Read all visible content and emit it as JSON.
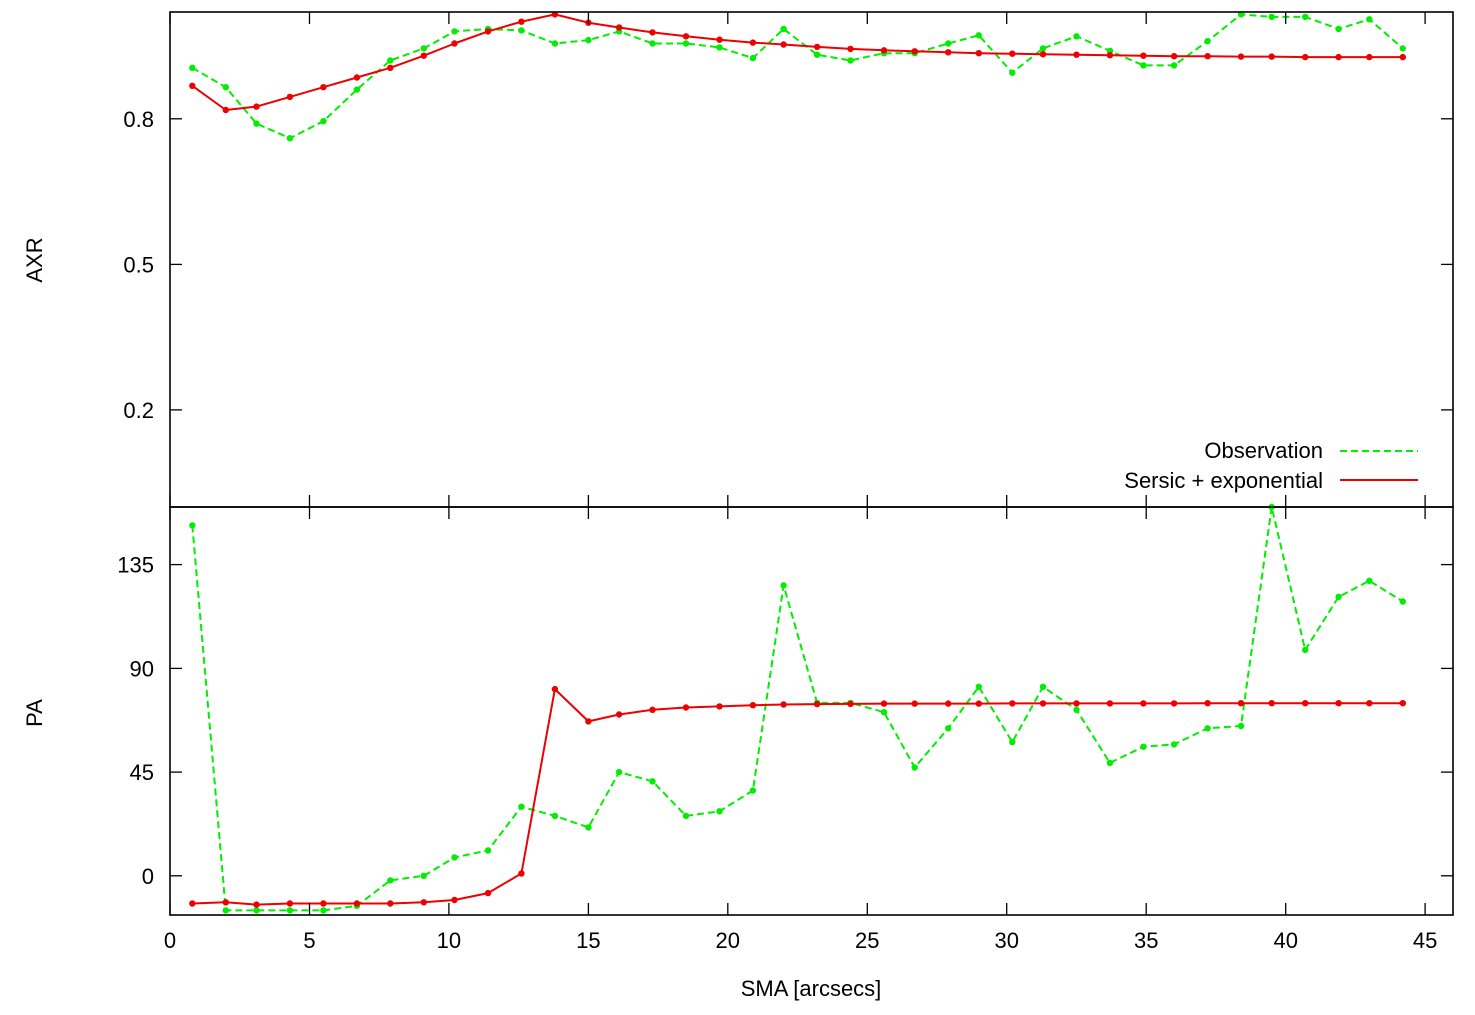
{
  "chart_data": [
    {
      "type": "line",
      "panel": "top",
      "ylabel": "AXR",
      "xlabel": "",
      "xlim": [
        0,
        46
      ],
      "ylim": [
        0.0,
        1.02
      ],
      "yticks": [
        {
          "value": 0.2,
          "label": "0.2"
        },
        {
          "value": 0.5,
          "label": "0.5"
        },
        {
          "value": 0.8,
          "label": "0.8"
        }
      ],
      "grid": false,
      "legend_position": "bottom-right",
      "series": [
        {
          "name": "Observation",
          "color": "#00ee00",
          "dash": true,
          "x": [
            0.8,
            2.0,
            3.1,
            4.3,
            5.5,
            6.7,
            7.9,
            9.1,
            10.2,
            11.4,
            12.6,
            13.8,
            15.0,
            16.1,
            17.3,
            18.5,
            19.7,
            20.9,
            22.0,
            23.2,
            24.4,
            25.6,
            26.7,
            27.9,
            29.0,
            30.2,
            31.3,
            32.5,
            33.7,
            34.9,
            36.0,
            37.2,
            38.4,
            39.5,
            40.7,
            41.9,
            43.0,
            44.2
          ],
          "y": [
            0.905,
            0.865,
            0.79,
            0.76,
            0.795,
            0.86,
            0.92,
            0.945,
            0.98,
            0.985,
            0.982,
            0.955,
            0.962,
            0.98,
            0.955,
            0.955,
            0.947,
            0.925,
            0.985,
            0.932,
            0.92,
            0.935,
            0.935,
            0.955,
            0.972,
            0.895,
            0.945,
            0.97,
            0.94,
            0.91,
            0.91,
            0.96,
            1.015,
            1.01,
            1.01,
            0.985,
            1.005,
            0.945
          ]
        },
        {
          "name": "Sersic + exponential",
          "color": "#ee0000",
          "dash": false,
          "x": [
            0.8,
            2.0,
            3.1,
            4.3,
            5.5,
            6.7,
            7.9,
            9.1,
            10.2,
            11.4,
            12.6,
            13.8,
            15.0,
            16.1,
            17.3,
            18.5,
            19.7,
            20.9,
            22.0,
            23.2,
            24.4,
            25.6,
            26.7,
            27.9,
            29.0,
            30.2,
            31.3,
            32.5,
            33.7,
            34.9,
            36.0,
            37.2,
            38.4,
            39.5,
            40.7,
            41.9,
            43.0,
            44.2
          ],
          "y": [
            0.868,
            0.818,
            0.825,
            0.845,
            0.865,
            0.885,
            0.905,
            0.93,
            0.955,
            0.98,
            1.0,
            1.015,
            0.998,
            0.988,
            0.978,
            0.97,
            0.963,
            0.957,
            0.953,
            0.948,
            0.944,
            0.941,
            0.939,
            0.937,
            0.935,
            0.934,
            0.933,
            0.932,
            0.931,
            0.93,
            0.929,
            0.929,
            0.928,
            0.928,
            0.927,
            0.927,
            0.927,
            0.927
          ]
        }
      ]
    },
    {
      "type": "line",
      "panel": "bottom",
      "ylabel": "PA",
      "xlabel": "SMA [arcsecs]",
      "xlim": [
        0,
        46
      ],
      "ylim": [
        -17,
        160
      ],
      "xticks": [
        {
          "value": 0,
          "label": "0"
        },
        {
          "value": 5,
          "label": "5"
        },
        {
          "value": 10,
          "label": "10"
        },
        {
          "value": 15,
          "label": "15"
        },
        {
          "value": 20,
          "label": "20"
        },
        {
          "value": 25,
          "label": "25"
        },
        {
          "value": 30,
          "label": "30"
        },
        {
          "value": 35,
          "label": "35"
        },
        {
          "value": 40,
          "label": "40"
        },
        {
          "value": 45,
          "label": "45"
        }
      ],
      "yticks": [
        {
          "value": 0,
          "label": "0"
        },
        {
          "value": 45,
          "label": "45"
        },
        {
          "value": 90,
          "label": "90"
        },
        {
          "value": 135,
          "label": "135"
        }
      ],
      "grid": false,
      "series": [
        {
          "name": "Observation",
          "color": "#00ee00",
          "dash": true,
          "x": [
            0.8,
            2.0,
            3.1,
            4.3,
            5.5,
            6.7,
            7.9,
            9.1,
            10.2,
            11.4,
            12.6,
            13.8,
            15.0,
            16.1,
            17.3,
            18.5,
            19.7,
            20.9,
            22.0,
            23.2,
            24.4,
            25.6,
            26.7,
            27.9,
            29.0,
            30.2,
            31.3,
            32.5,
            33.7,
            34.9,
            36.0,
            37.2,
            38.4,
            39.5,
            40.7,
            41.9,
            43.0,
            44.2
          ],
          "y": [
            152,
            -15,
            -15,
            -15,
            -15,
            -13,
            -2,
            0,
            8,
            11,
            30,
            26,
            21,
            45,
            41,
            26,
            28,
            37,
            126,
            75,
            75,
            71,
            47,
            64,
            82,
            58,
            82,
            72,
            49,
            56,
            57,
            64,
            65,
            160,
            98,
            121,
            128,
            119
          ]
        },
        {
          "name": "Sersic + exponential",
          "color": "#ee0000",
          "dash": false,
          "x": [
            0.8,
            2.0,
            3.1,
            4.3,
            5.5,
            6.7,
            7.9,
            9.1,
            10.2,
            11.4,
            12.6,
            13.8,
            15.0,
            16.1,
            17.3,
            18.5,
            19.7,
            20.9,
            22.0,
            23.2,
            24.4,
            25.6,
            26.7,
            27.9,
            29.0,
            30.2,
            31.3,
            32.5,
            33.7,
            34.9,
            36.0,
            37.2,
            38.4,
            39.5,
            40.7,
            41.9,
            43.0,
            44.2
          ],
          "y": [
            -12,
            -11.5,
            -12.5,
            -12,
            -12,
            -12,
            -12,
            -11.5,
            -10.5,
            -7.5,
            1,
            81,
            67,
            70,
            72,
            73,
            73.5,
            74,
            74.3,
            74.5,
            74.6,
            74.7,
            74.7,
            74.7,
            74.7,
            74.8,
            74.8,
            74.8,
            74.8,
            74.8,
            74.8,
            74.9,
            74.9,
            74.9,
            74.9,
            74.9,
            74.9,
            74.9
          ]
        }
      ]
    }
  ]
}
